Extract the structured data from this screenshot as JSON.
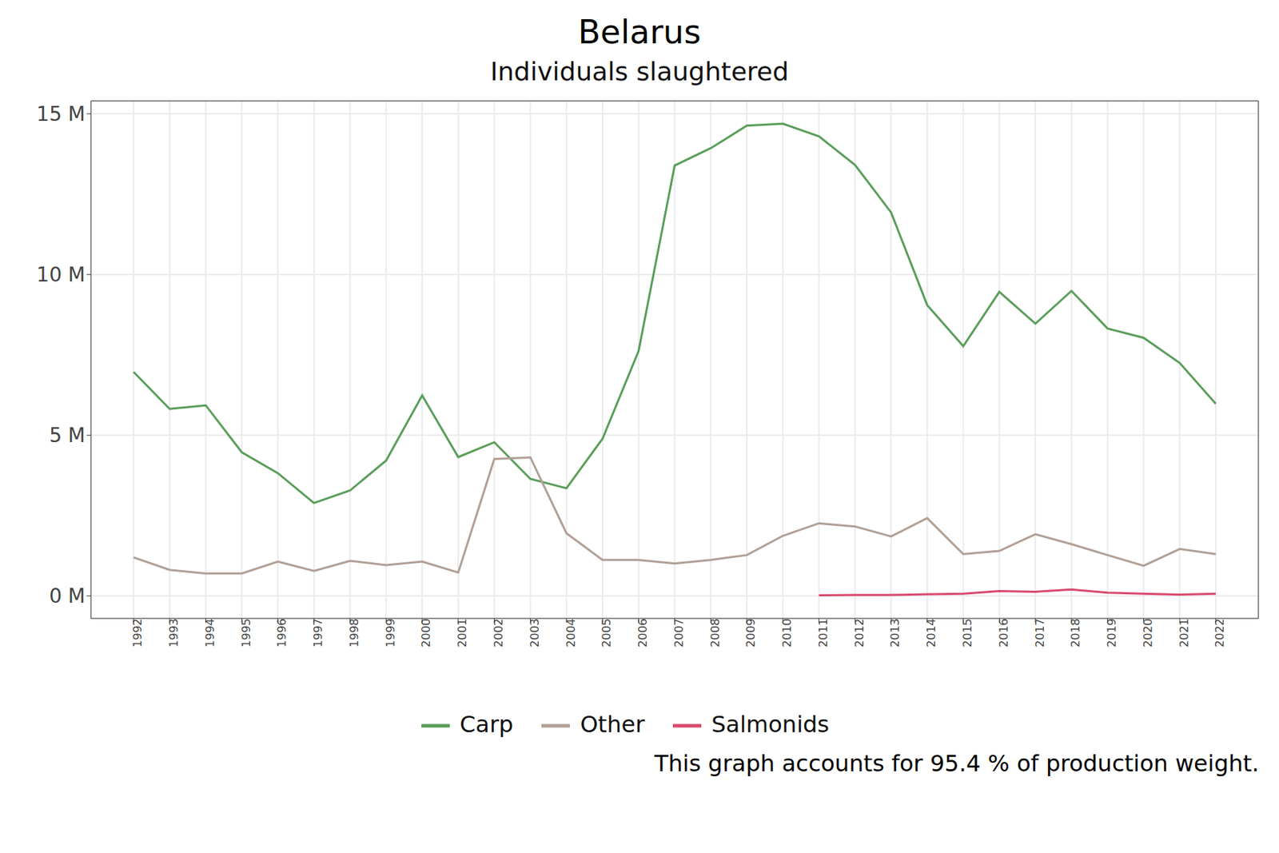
{
  "chart_data": {
    "type": "line",
    "title": "Belarus",
    "subtitle": "Individuals slaughtered",
    "caption": "This graph accounts for 95.4 % of production weight.",
    "categories": [
      "1992",
      "1993",
      "1994",
      "1995",
      "1996",
      "1997",
      "1998",
      "1999",
      "2000",
      "2001",
      "2002",
      "2003",
      "2004",
      "2005",
      "2006",
      "2007",
      "2008",
      "2009",
      "2010",
      "2011",
      "2012",
      "2013",
      "2014",
      "2015",
      "2016",
      "2017",
      "2018",
      "2019",
      "2020",
      "2021",
      "2022"
    ],
    "series": [
      {
        "name": "Salmonids",
        "color": "#d94a6e",
        "values": [
          null,
          null,
          null,
          null,
          null,
          null,
          null,
          null,
          null,
          null,
          null,
          null,
          null,
          null,
          null,
          null,
          null,
          null,
          null,
          0.02,
          0.03,
          0.03,
          0.05,
          0.07,
          0.15,
          0.13,
          0.2,
          0.1,
          0.07,
          0.04,
          0.07
        ]
      },
      {
        "name": "Carp",
        "color": "#5a9e5a",
        "values": [
          6.97,
          5.82,
          5.93,
          4.47,
          3.82,
          2.89,
          3.28,
          4.21,
          6.24,
          4.32,
          4.78,
          3.64,
          3.35,
          4.89,
          7.62,
          13.39,
          13.93,
          14.63,
          14.69,
          14.3,
          13.41,
          11.93,
          9.05,
          7.77,
          9.46,
          8.47,
          9.49,
          8.32,
          8.03,
          7.25,
          5.98
        ]
      },
      {
        "name": "Other",
        "color": "#b0a096",
        "values": [
          1.2,
          0.81,
          0.7,
          0.7,
          1.07,
          0.78,
          1.09,
          0.96,
          1.07,
          0.73,
          4.26,
          4.31,
          1.95,
          1.12,
          1.12,
          1.01,
          1.12,
          1.27,
          1.87,
          2.26,
          2.16,
          1.85,
          2.42,
          1.3,
          1.4,
          1.92,
          1.61,
          1.27,
          0.94,
          1.46,
          1.3
        ]
      }
    ],
    "ylim": [
      -0.7,
      15.4
    ],
    "yticks": [
      {
        "value": 0,
        "label": "0 M"
      },
      {
        "value": 5,
        "label": "5 M"
      },
      {
        "value": 10,
        "label": "10 M"
      },
      {
        "value": 15,
        "label": "15 M"
      }
    ],
    "grid": true,
    "legend": "bottom"
  }
}
